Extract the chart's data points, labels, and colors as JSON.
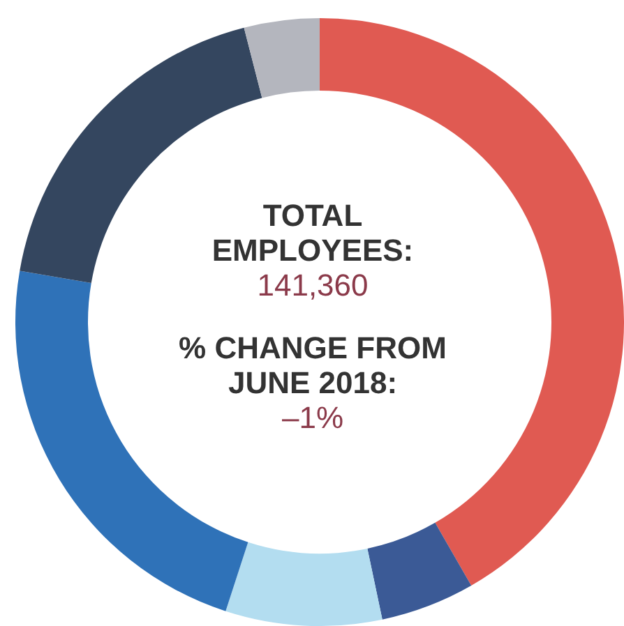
{
  "chart_data": {
    "type": "donut",
    "categories": [
      null,
      null,
      null,
      null,
      null,
      null
    ],
    "values": [
      41.7,
      5,
      8.3,
      22.7,
      18.3,
      4
    ],
    "colors": [
      "#e05a52",
      "#3b5a96",
      "#b3ddf0",
      "#2f72b8",
      "#34465f",
      "#b4b6be"
    ],
    "annotations": [
      "TOTAL EMPLOYEES:",
      "141,360",
      "% CHANGE FROM JUNE 2018:",
      "–1%"
    ],
    "legend": false
  }
}
